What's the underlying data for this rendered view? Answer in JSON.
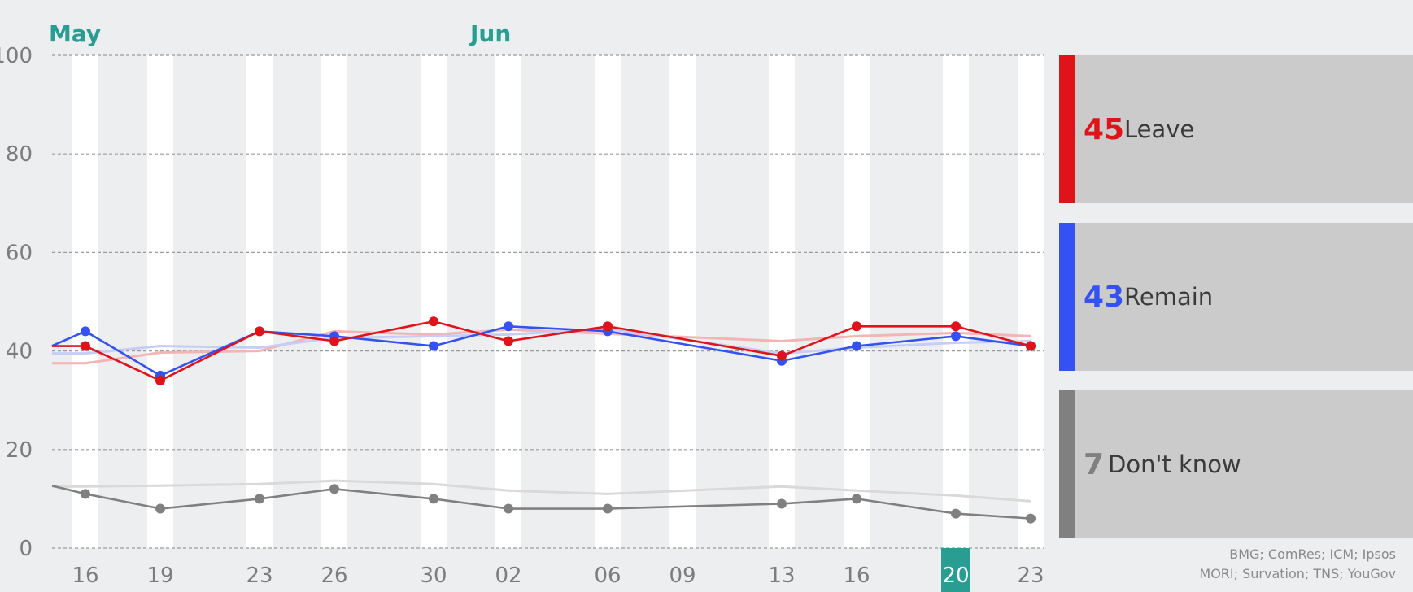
{
  "chart_data": {
    "type": "line",
    "months": [
      {
        "label": "May",
        "at": "16"
      },
      {
        "label": "Jun",
        "at": "02"
      }
    ],
    "x": [
      "16",
      "19",
      "23",
      "26",
      "30",
      "02",
      "06",
      "09",
      "13",
      "16",
      "20",
      "23"
    ],
    "highlighted_x": "20",
    "ylim": [
      0,
      100
    ],
    "yticks": [
      0,
      20,
      40,
      60,
      80,
      100
    ],
    "series": [
      {
        "name": "Leave",
        "color": "#e0121a",
        "values": [
          41,
          34,
          44,
          42,
          46,
          42,
          45,
          null,
          39,
          45,
          45,
          41
        ]
      },
      {
        "name": "Remain",
        "color": "#3451f4",
        "values": [
          44,
          35,
          44,
          43,
          41,
          45,
          44,
          null,
          38,
          41,
          43,
          41
        ]
      },
      {
        "name": "Don't know",
        "color": "#808080",
        "values": [
          11,
          8,
          10,
          12,
          10,
          8,
          8,
          null,
          9,
          10,
          7,
          6
        ]
      }
    ],
    "legend_position": "right",
    "grid": true
  },
  "legend": [
    {
      "value": "45",
      "label": "Leave",
      "color": "#e0121a"
    },
    {
      "value": "43",
      "label": "Remain",
      "color": "#3451f4"
    },
    {
      "value": "7",
      "label": "Don't know",
      "color": "#808080"
    }
  ],
  "source": {
    "line1": "BMG; ComRes; ICM; Ipsos",
    "line2": "MORI; Survation; TNS; YouGov"
  }
}
